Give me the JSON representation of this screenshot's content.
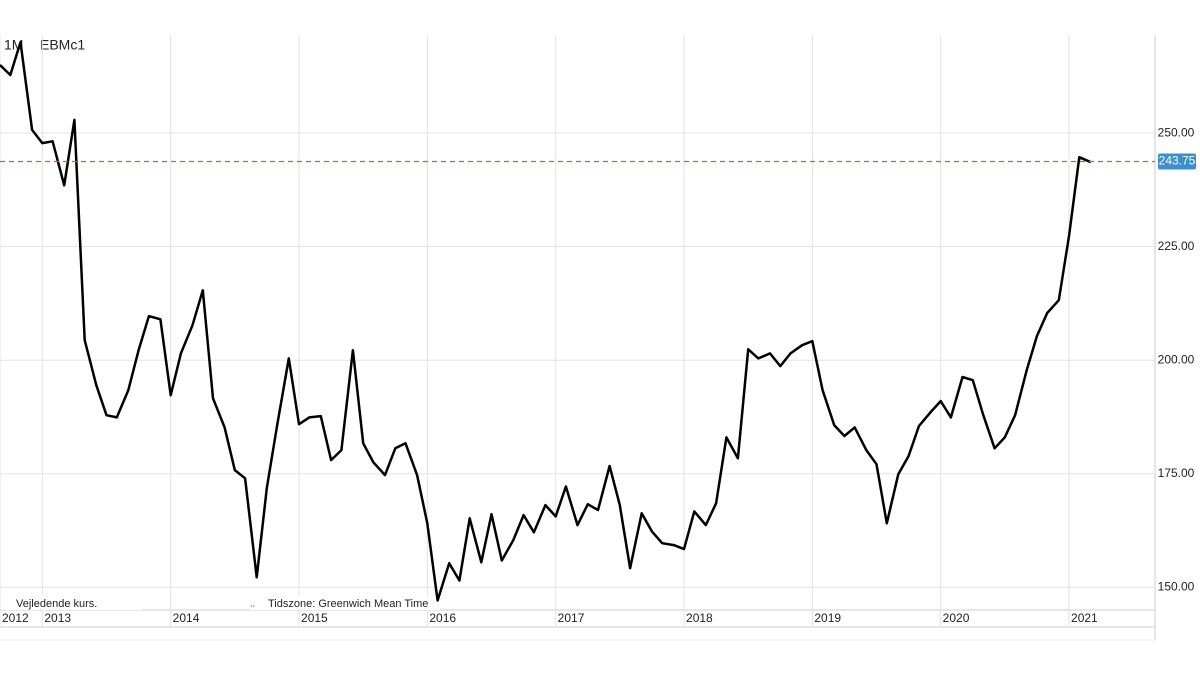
{
  "chart_data": {
    "type": "line",
    "interval": "1M",
    "symbol": "EBMc1",
    "x": [
      2012.67,
      2012.75,
      2012.83,
      2012.92,
      2013.0,
      2013.08,
      2013.17,
      2013.25,
      2013.33,
      2013.42,
      2013.5,
      2013.58,
      2013.67,
      2013.75,
      2013.83,
      2013.92,
      2014.0,
      2014.08,
      2014.17,
      2014.25,
      2014.33,
      2014.42,
      2014.5,
      2014.58,
      2014.67,
      2014.75,
      2014.83,
      2014.92,
      2015.0,
      2015.08,
      2015.17,
      2015.25,
      2015.33,
      2015.42,
      2015.5,
      2015.58,
      2015.67,
      2015.75,
      2015.83,
      2015.92,
      2016.0,
      2016.08,
      2016.17,
      2016.25,
      2016.33,
      2016.42,
      2016.5,
      2016.58,
      2016.67,
      2016.75,
      2016.83,
      2016.92,
      2017.0,
      2017.08,
      2017.17,
      2017.25,
      2017.33,
      2017.42,
      2017.5,
      2017.58,
      2017.67,
      2017.75,
      2017.83,
      2017.92,
      2018.0,
      2018.08,
      2018.17,
      2018.25,
      2018.33,
      2018.42,
      2018.5,
      2018.58,
      2018.67,
      2018.75,
      2018.83,
      2018.92,
      2019.0,
      2019.08,
      2019.17,
      2019.25,
      2019.33,
      2019.42,
      2019.5,
      2019.58,
      2019.67,
      2019.75,
      2019.83,
      2019.92,
      2020.0,
      2020.08,
      2020.17,
      2020.25,
      2020.33,
      2020.42,
      2020.5,
      2020.58,
      2020.67,
      2020.75,
      2020.83,
      2020.92,
      2021.0,
      2021.08,
      2021.17
    ],
    "series": [
      {
        "name": "EBMc1",
        "color": "#000000",
        "values": [
          265.0,
          262.8,
          270.0,
          250.7,
          247.8,
          248.2,
          238.5,
          252.9,
          204.4,
          194.5,
          187.9,
          187.4,
          193.4,
          202.2,
          209.7,
          209.0,
          192.3,
          201.5,
          207.7,
          215.4,
          191.6,
          185.2,
          175.8,
          174.0,
          152.2,
          172.0,
          185.7,
          200.4,
          185.9,
          187.4,
          187.7,
          178.0,
          180.2,
          202.2,
          181.7,
          177.5,
          174.7,
          180.6,
          181.7,
          174.7,
          164.1,
          147.1,
          155.3,
          151.5,
          165.2,
          155.5,
          166.1,
          155.9,
          160.4,
          165.9,
          162.1,
          168.1,
          165.6,
          172.2,
          163.7,
          168.3,
          167.0,
          176.7,
          168.1,
          154.2,
          166.3,
          162.3,
          159.7,
          159.3,
          158.4,
          166.7,
          163.7,
          168.5,
          183.0,
          178.4,
          202.4,
          200.4,
          201.5,
          198.7,
          201.5,
          203.3,
          204.2,
          193.4,
          185.7,
          183.3,
          185.2,
          180.2,
          177.1,
          164.1,
          174.9,
          178.9,
          185.5,
          188.5,
          191.0,
          187.4,
          196.3,
          195.6,
          188.1,
          180.6,
          183.0,
          187.9,
          197.8,
          205.3,
          210.4,
          213.2,
          227.3,
          244.7,
          243.6
        ]
      }
    ],
    "last_price": 243.75,
    "last_price_color": "#d9534f",
    "xlim": [
      2012.67,
      2021.67
    ],
    "xticks": [
      {
        "value": 2012.67,
        "label": "2012"
      },
      2013,
      2014,
      2015,
      2016,
      2017,
      2018,
      2019,
      2020,
      2021
    ],
    "ylim": [
      145,
      271.6
    ],
    "yticks": [
      {
        "value": 150,
        "label": "150.00"
      },
      {
        "value": 175,
        "label": "175.00"
      },
      {
        "value": 200,
        "label": "200.00"
      },
      {
        "value": 225,
        "label": "225.00"
      },
      {
        "value": 250,
        "label": "250.00"
      }
    ],
    "grid": true,
    "footer_left": "Vejledende kurs.",
    "footer_sep": "..",
    "footer_timezone": "Tidszone: Greenwich Mean Time"
  }
}
